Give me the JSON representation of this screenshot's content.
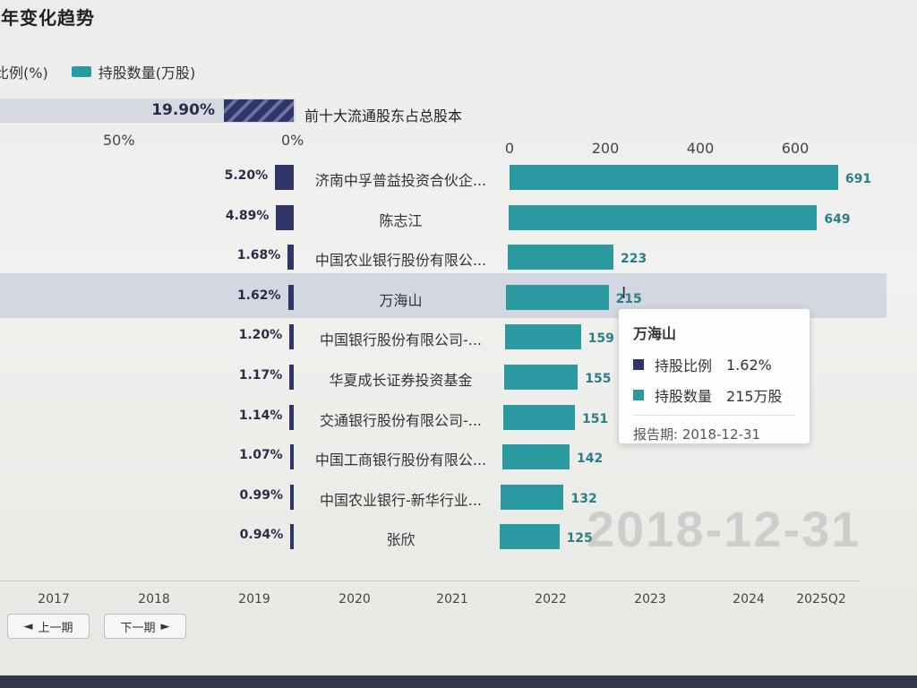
{
  "title": "历年变化趋势",
  "legend": {
    "share": "持股比例(%)",
    "qty": "持股数量(万股)"
  },
  "colors": {
    "share": "#2f3567",
    "qty": "#2b9aa0"
  },
  "summary": {
    "pct_label": "19.90%",
    "label": "前十大流通股东占总股本"
  },
  "axis_left": {
    "ticks": [
      "50%",
      "0%"
    ]
  },
  "axis_right": {
    "ticks": [
      "0",
      "200",
      "400",
      "600"
    ]
  },
  "chart_data": {
    "type": "bar",
    "title": "历年变化趋势",
    "report_date": "2018-12-31",
    "categories": [
      "济南中孚普益投资合伙企...",
      "陈志江",
      "中国农业银行股份有限公...",
      "万海山",
      "中国银行股份有限公司-...",
      "华夏成长证券投资基金",
      "交通银行股份有限公司-...",
      "中国工商银行股份有限公...",
      "中国农业银行-新华行业...",
      "张欣"
    ],
    "series": [
      {
        "name": "持股比例(%)",
        "values": [
          5.2,
          4.89,
          1.68,
          1.62,
          1.2,
          1.17,
          1.14,
          1.07,
          0.99,
          0.94
        ],
        "labels": [
          "5.20%",
          "4.89%",
          "1.68%",
          "1.62%",
          "1.20%",
          "1.17%",
          "1.14%",
          "1.07%",
          "0.99%",
          "0.94%"
        ]
      },
      {
        "name": "持股数量(万股)",
        "values": [
          691,
          649,
          223,
          215,
          159,
          155,
          151,
          142,
          132,
          125
        ],
        "labels": [
          "691",
          "649",
          "223",
          "215",
          "159",
          "155",
          "151",
          "142",
          "132",
          "125"
        ]
      }
    ],
    "xlim_share": [
      0,
      50
    ],
    "xlim_qty": [
      0,
      700
    ],
    "highlighted_index": 3
  },
  "tooltip": {
    "title": "万海山",
    "share_name": "持股比例",
    "share_value": "1.62%",
    "qty_name": "持股数量",
    "qty_value": "215万股",
    "date_text": "报告期: 2018-12-31"
  },
  "watermark": "2018-12-31",
  "timeline": {
    "years": [
      "2017",
      "2018",
      "2019",
      "2020",
      "2021",
      "2022",
      "2023",
      "2024",
      "2025Q2"
    ],
    "current": "2018"
  },
  "nav": {
    "prev": "上一期",
    "next": "下一期",
    "prev_arrow": "◄",
    "next_arrow": "►"
  }
}
